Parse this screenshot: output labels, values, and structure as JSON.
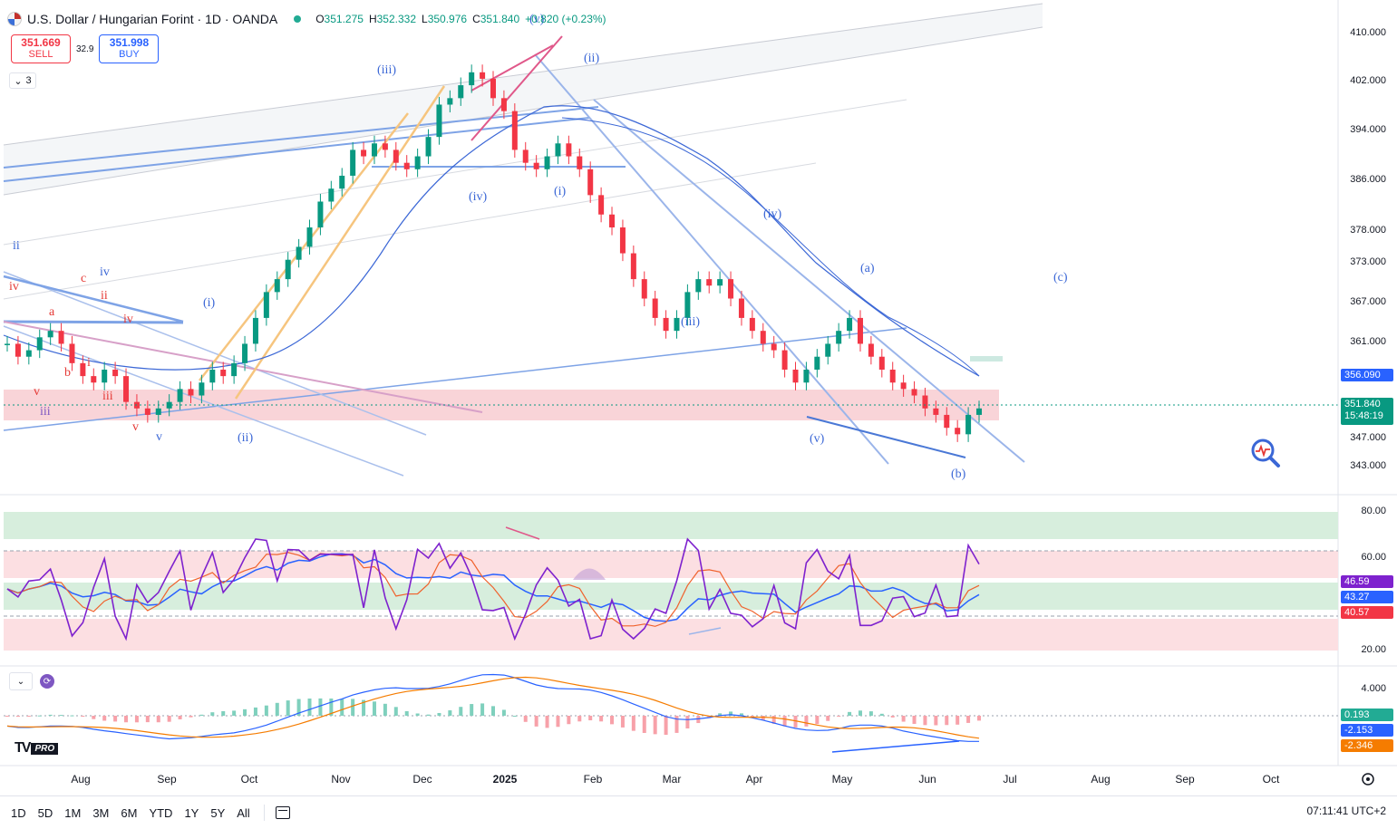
{
  "header": {
    "symbol_title": "U.S. Dollar / Hungarian Forint · 1D · OANDA",
    "open_label": "O",
    "open": "351.275",
    "high_label": "H",
    "high": "352.332",
    "low_label": "L",
    "low": "350.976",
    "close_label": "C",
    "close": "351.840",
    "change": "+0.820 (+0.23%)"
  },
  "trade": {
    "sell_price": "351.669",
    "sell_label": "SELL",
    "spread": "32.9",
    "buy_price": "351.998",
    "buy_label": "BUY"
  },
  "indicators_collapsed_count": "3",
  "price_axis": {
    "ticks": [
      "410.000",
      "402.000",
      "394.000",
      "386.000",
      "378.000",
      "373.000",
      "367.000",
      "361.000",
      "347.000",
      "343.000"
    ],
    "ma_tag": "356.090",
    "last_price_tag": "351.840",
    "countdown": "15:48:19"
  },
  "rsi_axis": {
    "ticks": [
      "80.00",
      "60.00",
      "20.00"
    ],
    "rsi_tag": "46.59",
    "ma_tag": "43.27",
    "ema_tag": "40.57"
  },
  "macd_axis": {
    "ticks": [
      "4.000"
    ],
    "hist_tag": "0.193",
    "macd_tag": "-2.153",
    "signal_tag": "-2.346"
  },
  "time_axis": [
    "Aug",
    "Sep",
    "Oct",
    "Nov",
    "Dec",
    "2025",
    "Feb",
    "Mar",
    "Apr",
    "May",
    "Jun",
    "Jul",
    "Aug",
    "Sep",
    "Oct"
  ],
  "wave_labels": {
    "top_iii": "(iii)",
    "top_v": "(v)",
    "ii_b": "(ii)",
    "iv_b": "(iv)",
    "i_b": "(i)",
    "iv_c": "(iv)",
    "iii_c": "(iii)",
    "v_c": "(v)",
    "a_c": "(a)",
    "b_c": "(b)",
    "c_c": "(c)",
    "i_left": "(i)",
    "ii_left": "(ii)",
    "ii_roman": "ii",
    "iv_roman_red": "iv",
    "c_red": "c",
    "iv_roman_blue": "iv",
    "ii_red": "ii",
    "a_red": "a",
    "iv_red2": "iv",
    "b_red": "b",
    "i_red": "i",
    "v_red": "v",
    "iii_red": "iii",
    "iii_purple": "iii",
    "v_red2": "v",
    "v_blue": "v"
  },
  "toolbar": {
    "ranges": [
      "1D",
      "5D",
      "1M",
      "3M",
      "6M",
      "YTD",
      "1Y",
      "5Y",
      "All"
    ],
    "clock": "07:11:41 UTC+2"
  },
  "branding": {
    "pro_label": "PRO"
  },
  "colors": {
    "up": "#089981",
    "down": "#f23645",
    "ma_line": "#2962ff",
    "rsi_line": "#7e22ce",
    "signal_line": "#f57c00"
  },
  "chart_data": {
    "type": "candlestick",
    "series": [
      {
        "name": "close",
        "values": [
          362,
          360,
          361,
          363,
          364,
          362,
          359,
          357,
          356,
          358,
          357,
          353,
          352,
          351,
          352,
          353,
          355,
          354,
          356,
          358,
          357,
          359,
          362,
          366,
          370,
          372,
          375,
          377,
          380,
          384,
          386,
          388,
          392,
          391,
          393,
          392,
          390,
          389,
          391,
          394,
          399,
          400,
          402,
          404,
          403,
          400,
          398,
          392,
          390,
          389,
          391,
          393,
          391,
          389,
          385,
          382,
          380,
          376,
          372,
          369,
          366,
          364,
          366,
          370,
          372,
          371,
          372,
          369,
          366,
          364,
          362,
          361,
          358,
          356,
          358,
          360,
          362,
          364,
          366,
          362,
          360,
          358,
          356,
          355,
          354,
          352,
          351,
          349,
          348,
          351,
          352
        ]
      }
    ]
  }
}
